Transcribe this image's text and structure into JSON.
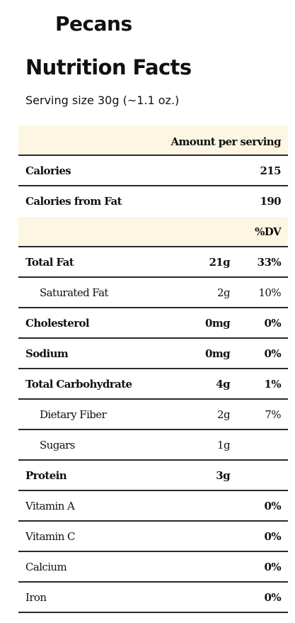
{
  "food_name": "Pecans",
  "title": "Nutrition Facts",
  "serving_size": "Serving size 30g (~1.1 oz.)",
  "header": {
    "amount_per_serving": "Amount per serving",
    "dv_label": "%DV"
  },
  "calories": {
    "label": "Calories",
    "value": "215"
  },
  "calories_from_fat": {
    "label": "Calories from Fat",
    "value": "190"
  },
  "nutrients": [
    {
      "label": "Total Fat",
      "amount": "21g",
      "dv": "33%"
    },
    {
      "label": "Saturated Fat",
      "amount": "2g",
      "dv": "10%"
    },
    {
      "label": "Cholesterol",
      "amount": "0mg",
      "dv": "0%"
    },
    {
      "label": "Sodium",
      "amount": "0mg",
      "dv": "0%"
    },
    {
      "label": "Total Carbohydrate",
      "amount": "4g",
      "dv": "1%"
    },
    {
      "label": "Dietary Fiber",
      "amount": "2g",
      "dv": "7%"
    },
    {
      "label": "Sugars",
      "amount": "1g",
      "dv": ""
    },
    {
      "label": "Protein",
      "amount": "3g",
      "dv": ""
    }
  ],
  "vitamins": [
    {
      "label": "Vitamin A",
      "dv": "0%"
    },
    {
      "label": "Vitamin C",
      "dv": "0%"
    },
    {
      "label": "Calcium",
      "dv": "0%"
    },
    {
      "label": "Iron",
      "dv": "0%"
    }
  ],
  "colors": {
    "header_background": "#fdf6e3",
    "rule": "#2a2a2a"
  }
}
